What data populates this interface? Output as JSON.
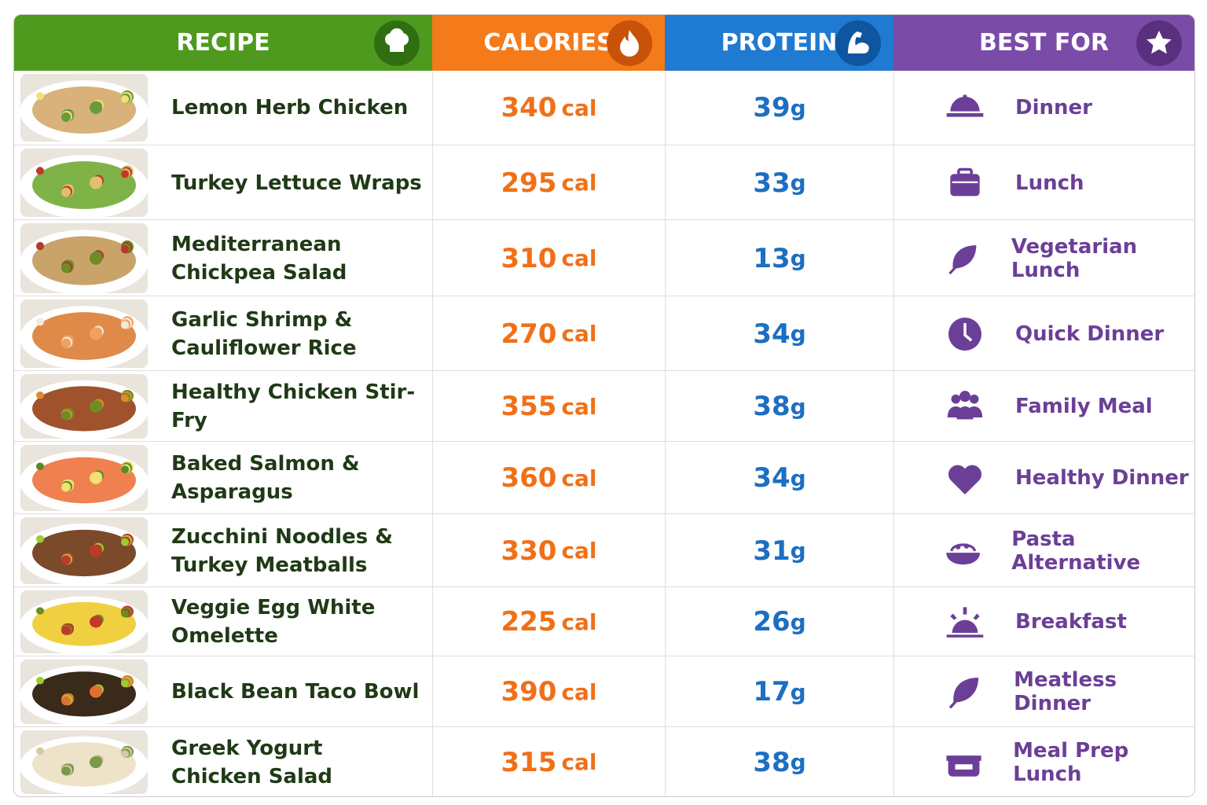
{
  "header": {
    "recipe": "RECIPE",
    "calories": "CALORIES",
    "protein": "PROTEIN",
    "best_for": "BEST FOR"
  },
  "rows": [
    {
      "name": [
        "Lemon Herb Chicken"
      ],
      "calories": 340,
      "calories_unit": "cal",
      "protein": 39,
      "protein_unit": "g",
      "best_for": "Dinner"
    },
    {
      "name": [
        "Turkey Lettuce Wraps"
      ],
      "calories": 295,
      "calories_unit": "cal",
      "protein": 33,
      "protein_unit": "g",
      "best_for": "Lunch"
    },
    {
      "name": [
        "Mediterranean",
        "Chickpea Salad"
      ],
      "calories": 310,
      "calories_unit": "cal",
      "protein": 13,
      "protein_unit": "g",
      "best_for": "Vegetarian Lunch"
    },
    {
      "name": [
        "Garlic Shrimp &",
        "Cauliflower Rice"
      ],
      "calories": 270,
      "calories_unit": "cal",
      "protein": 34,
      "protein_unit": "g",
      "best_for": "Quick Dinner"
    },
    {
      "name": [
        "Healthy Chicken Stir-Fry"
      ],
      "calories": 355,
      "calories_unit": "cal",
      "protein": 38,
      "protein_unit": "g",
      "best_for": "Family Meal"
    },
    {
      "name": [
        "Baked Salmon & Asparagus"
      ],
      "calories": 360,
      "calories_unit": "cal",
      "protein": 34,
      "protein_unit": "g",
      "best_for": "Healthy Dinner"
    },
    {
      "name": [
        "Zucchini Noodles &",
        "Turkey Meatballs"
      ],
      "calories": 330,
      "calories_unit": "cal",
      "protein": 31,
      "protein_unit": "g",
      "best_for": "Pasta Alternative"
    },
    {
      "name": [
        "Veggie Egg White Omelette"
      ],
      "calories": 225,
      "calories_unit": "cal",
      "protein": 26,
      "protein_unit": "g",
      "best_for": "Breakfast"
    },
    {
      "name": [
        "Black Bean Taco Bowl"
      ],
      "calories": 390,
      "calories_unit": "cal",
      "protein": 17,
      "protein_unit": "g",
      "best_for": "Meatless Dinner"
    },
    {
      "name": [
        "Greek Yogurt",
        "Chicken Salad"
      ],
      "calories": 315,
      "calories_unit": "cal",
      "protein": 38,
      "protein_unit": "g",
      "best_for": "Meal Prep Lunch"
    }
  ]
}
